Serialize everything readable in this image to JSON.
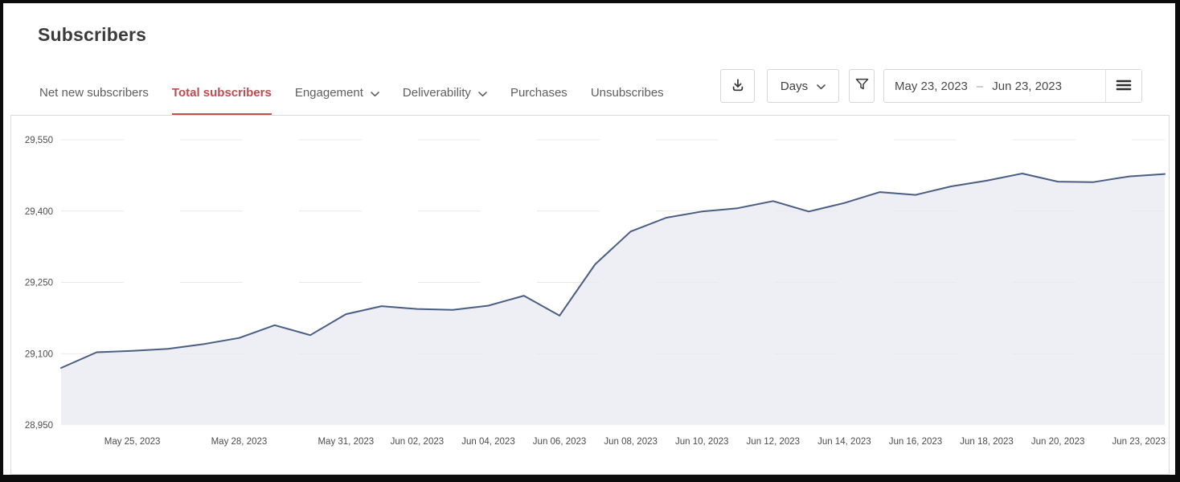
{
  "page": {
    "title": "Subscribers"
  },
  "tabs": [
    {
      "label": "Net new subscribers",
      "active": false
    },
    {
      "label": "Total subscribers",
      "active": true
    },
    {
      "label": "Engagement",
      "has_dropdown": true
    },
    {
      "label": "Deliverability",
      "has_dropdown": true
    },
    {
      "label": "Purchases"
    },
    {
      "label": "Unsubscribes"
    }
  ],
  "toolbar": {
    "download_button": {
      "icon": "download-icon"
    },
    "interval_dropdown": {
      "value": "Days",
      "icon": "chevron-down-icon"
    },
    "filter_button": {
      "icon": "filter-icon"
    },
    "date_range": {
      "start": "May 23, 2023",
      "separator": "–",
      "end": "Jun 23, 2023"
    },
    "menu_button": {
      "icon": "menu-icon"
    }
  },
  "colors": {
    "accent_red": "#bf4b50",
    "line": "#4a5d82",
    "area_fill": "#edeff5",
    "grid": "#e9e9e9",
    "panel_border": "#d9d9d9"
  },
  "chart_data": {
    "type": "area",
    "title": "Total subscribers",
    "xlabel": "",
    "ylabel": "",
    "ylim": [
      28950,
      29550
    ],
    "grid": "dashed-horizontal",
    "legend": "none",
    "line_color": "#4a5d82",
    "fill_color": "#edeff5",
    "grid_color": "#e9e9e9",
    "x": [
      "May 23, 2023",
      "May 24, 2023",
      "May 25, 2023",
      "May 26, 2023",
      "May 27, 2023",
      "May 28, 2023",
      "May 29, 2023",
      "May 30, 2023",
      "May 31, 2023",
      "Jun 01, 2023",
      "Jun 02, 2023",
      "Jun 03, 2023",
      "Jun 04, 2023",
      "Jun 05, 2023",
      "Jun 06, 2023",
      "Jun 07, 2023",
      "Jun 08, 2023",
      "Jun 09, 2023",
      "Jun 10, 2023",
      "Jun 11, 2023",
      "Jun 12, 2023",
      "Jun 13, 2023",
      "Jun 14, 2023",
      "Jun 15, 2023",
      "Jun 16, 2023",
      "Jun 17, 2023",
      "Jun 18, 2023",
      "Jun 19, 2023",
      "Jun 20, 2023",
      "Jun 21, 2023",
      "Jun 22, 2023",
      "Jun 23, 2023"
    ],
    "values": [
      29070,
      29103,
      29106,
      29110,
      29120,
      29133,
      29160,
      29139,
      29183,
      29200,
      29194,
      29192,
      29201,
      29222,
      29180,
      29288,
      29357,
      29386,
      29399,
      29406,
      29421,
      29399,
      29417,
      29440,
      29434,
      29452,
      29464,
      29479,
      29462,
      29461,
      29473,
      29478
    ],
    "y_ticks": [
      {
        "value": 29550,
        "label": "29,550"
      },
      {
        "value": 29400,
        "label": "29,400"
      },
      {
        "value": 29250,
        "label": "29,250"
      },
      {
        "value": 29100,
        "label": "29,100"
      },
      {
        "value": 28950,
        "label": "28,950"
      }
    ],
    "x_ticks": [
      {
        "index": 2,
        "label": "May 25, 2023"
      },
      {
        "index": 5,
        "label": "May 28, 2023"
      },
      {
        "index": 8,
        "label": "May 31, 2023"
      },
      {
        "index": 10,
        "label": "Jun 02, 2023"
      },
      {
        "index": 12,
        "label": "Jun 04, 2023"
      },
      {
        "index": 14,
        "label": "Jun 06, 2023"
      },
      {
        "index": 16,
        "label": "Jun 08, 2023"
      },
      {
        "index": 18,
        "label": "Jun 10, 2023"
      },
      {
        "index": 20,
        "label": "Jun 12, 2023"
      },
      {
        "index": 22,
        "label": "Jun 14, 2023"
      },
      {
        "index": 24,
        "label": "Jun 16, 2023"
      },
      {
        "index": 26,
        "label": "Jun 18, 2023"
      },
      {
        "index": 28,
        "label": "Jun 20, 2023"
      },
      {
        "index": 31,
        "label": "Jun 23, 2023"
      }
    ]
  }
}
